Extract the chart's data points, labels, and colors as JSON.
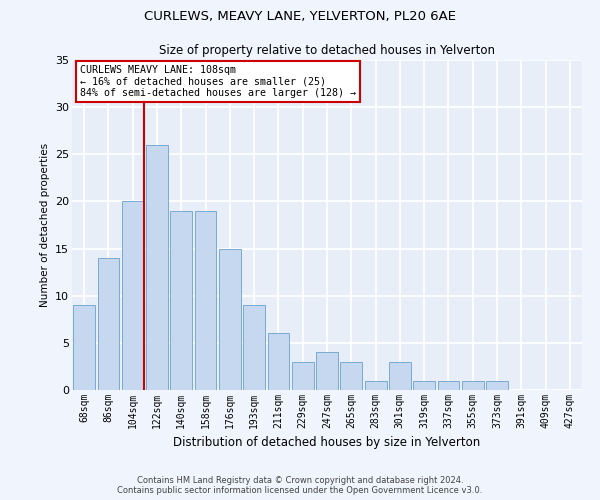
{
  "title": "CURLEWS, MEAVY LANE, YELVERTON, PL20 6AE",
  "subtitle": "Size of property relative to detached houses in Yelverton",
  "xlabel": "Distribution of detached houses by size in Yelverton",
  "ylabel": "Number of detached properties",
  "categories": [
    "68sqm",
    "86sqm",
    "104sqm",
    "122sqm",
    "140sqm",
    "158sqm",
    "176sqm",
    "193sqm",
    "211sqm",
    "229sqm",
    "247sqm",
    "265sqm",
    "283sqm",
    "301sqm",
    "319sqm",
    "337sqm",
    "355sqm",
    "373sqm",
    "391sqm",
    "409sqm",
    "427sqm"
  ],
  "values": [
    9,
    14,
    20,
    26,
    19,
    19,
    15,
    9,
    6,
    3,
    4,
    3,
    1,
    3,
    1,
    1,
    1,
    1,
    0,
    0,
    0
  ],
  "bar_color": "#c5d8f0",
  "bar_edge_color": "#7aaad0",
  "highlight_index": 2,
  "highlight_line_color": "#cc0000",
  "annotation_lines": [
    "CURLEWS MEAVY LANE: 108sqm",
    "← 16% of detached houses are smaller (25)",
    "84% of semi-detached houses are larger (128) →"
  ],
  "ylim": [
    0,
    35
  ],
  "yticks": [
    0,
    5,
    10,
    15,
    20,
    25,
    30,
    35
  ],
  "background_color": "#e8eef8",
  "grid_color": "#ffffff",
  "fig_background": "#f0f4fc",
  "footer_line1": "Contains HM Land Registry data © Crown copyright and database right 2024.",
  "footer_line2": "Contains public sector information licensed under the Open Government Licence v3.0."
}
